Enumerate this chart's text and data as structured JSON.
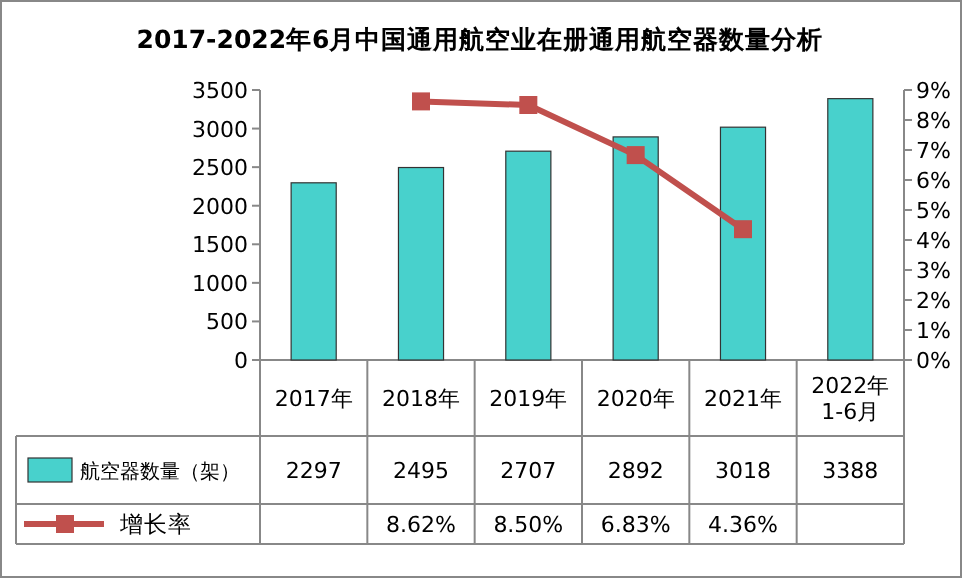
{
  "chart_data": {
    "type": "bar",
    "title": "2017-2022年6月中国通用航空业在册通用航空器数量分析",
    "categories": [
      "2017年",
      "2018年",
      "2019年",
      "2020年",
      "2021年",
      "2022年\n1-6月"
    ],
    "series": [
      {
        "name": "航空器数量（架）",
        "color": "#48d1cc",
        "values": [
          2297,
          2495,
          2707,
          2892,
          3018,
          3388
        ],
        "value_labels": [
          "2297",
          "2495",
          "2707",
          "2892",
          "3018",
          "3388"
        ]
      },
      {
        "name": "增长率",
        "type": "line",
        "axis": "y2",
        "color": "#c0504d",
        "marker": "square",
        "values": [
          null,
          8.62,
          8.5,
          6.83,
          4.36,
          null
        ],
        "value_labels": [
          null,
          "8.62%",
          "8.50%",
          "6.83%",
          "4.36%",
          null
        ]
      }
    ],
    "ylim": [
      0,
      3500
    ],
    "yticks": [
      0,
      500,
      1000,
      1500,
      2000,
      2500,
      3000,
      3500
    ],
    "y2lim": [
      0,
      9
    ],
    "y2ticks": [
      {
        "value": 0,
        "label": "0%"
      },
      {
        "value": 1,
        "label": "1%"
      },
      {
        "value": 2,
        "label": "2%"
      },
      {
        "value": 3,
        "label": "3%"
      },
      {
        "value": 4,
        "label": "4%"
      },
      {
        "value": 5,
        "label": "5%"
      },
      {
        "value": 6,
        "label": "6%"
      },
      {
        "value": 7,
        "label": "7%"
      },
      {
        "value": 8,
        "label": "8%"
      },
      {
        "value": 9,
        "label": "9%"
      }
    ],
    "legend": "bottom left",
    "grid": false
  }
}
